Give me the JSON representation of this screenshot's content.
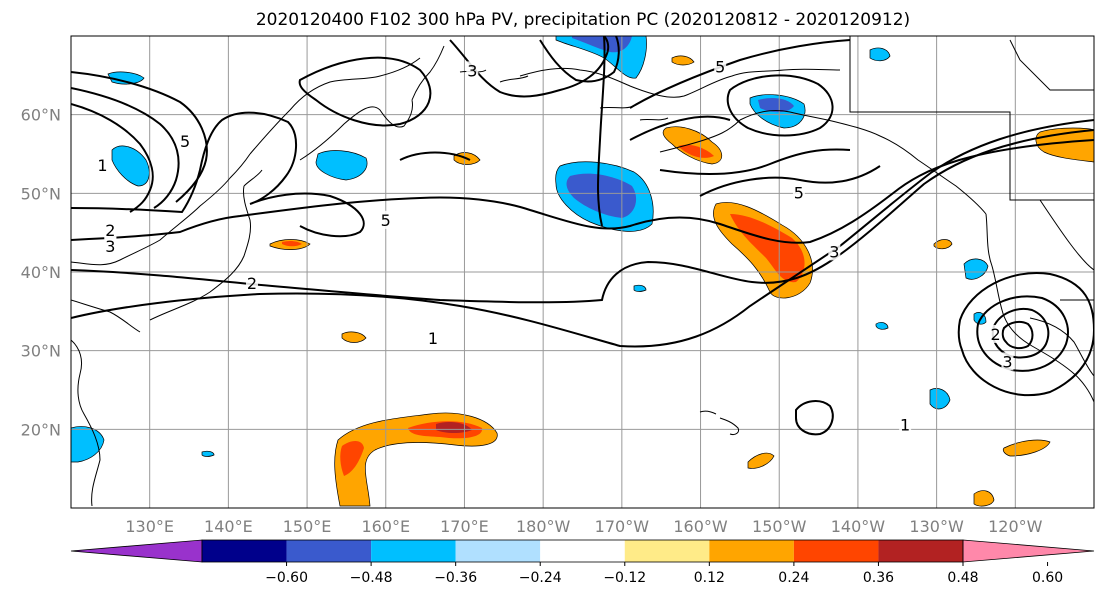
{
  "title": "2020120400 F102 300 hPa PV, precipitation PC (2020120812 - 2020120912)",
  "map": {
    "projection": "equirectangular",
    "lon_range": [
      120,
      250
    ],
    "lat_range": [
      10,
      70
    ],
    "lat_ticks": [
      {
        "value": 60,
        "label": "60°N"
      },
      {
        "value": 50,
        "label": "50°N"
      },
      {
        "value": 40,
        "label": "40°N"
      },
      {
        "value": 30,
        "label": "30°N"
      },
      {
        "value": 20,
        "label": "20°N"
      }
    ],
    "lon_ticks": [
      {
        "value": 130,
        "label": "130°E"
      },
      {
        "value": 140,
        "label": "140°E"
      },
      {
        "value": 150,
        "label": "150°E"
      },
      {
        "value": 160,
        "label": "160°E"
      },
      {
        "value": 170,
        "label": "170°E"
      },
      {
        "value": 180,
        "label": "180°W"
      },
      {
        "value": 190,
        "label": "170°W"
      },
      {
        "value": 200,
        "label": "160°W"
      },
      {
        "value": 210,
        "label": "150°W"
      },
      {
        "value": 220,
        "label": "140°W"
      },
      {
        "value": 230,
        "label": "130°W"
      },
      {
        "value": 240,
        "label": "120°W"
      }
    ],
    "contour_labels": [
      {
        "text": "1",
        "lon": 166,
        "lat": 31.5
      },
      {
        "text": "1",
        "lon": 124,
        "lat": 53.5
      },
      {
        "text": "1",
        "lon": 226,
        "lat": 20.5
      },
      {
        "text": "2",
        "lon": 143,
        "lat": 38.5
      },
      {
        "text": "2",
        "lon": 125,
        "lat": 45.2
      },
      {
        "text": "2",
        "lon": 237.5,
        "lat": 32
      },
      {
        "text": "3",
        "lon": 125,
        "lat": 43.2
      },
      {
        "text": "3",
        "lon": 239,
        "lat": 28.5
      },
      {
        "text": "3",
        "lon": 217,
        "lat": 42.5
      },
      {
        "text": "3",
        "lon": 171,
        "lat": 65.5
      },
      {
        "text": "5",
        "lon": 134.5,
        "lat": 56.5
      },
      {
        "text": "5",
        "lon": 160,
        "lat": 46.5
      },
      {
        "text": "5",
        "lon": 212.5,
        "lat": 50
      },
      {
        "text": "5",
        "lon": 202.5,
        "lat": 66
      }
    ]
  },
  "colorbar": {
    "colors": [
      "#9932CC",
      "#00008B",
      "#3A5ACD",
      "#00BFFF",
      "#B0E0FF",
      "#FFFFFF",
      "#FFEB88",
      "#FFA500",
      "#FF4500",
      "#B22222",
      "#FF88AA"
    ],
    "tick_values": [
      -0.6,
      -0.48,
      -0.36,
      -0.24,
      -0.12,
      0.12,
      0.24,
      0.36,
      0.48,
      0.6
    ],
    "tick_labels": [
      "−0.60",
      "−0.48",
      "−0.36",
      "−0.24",
      "−0.12",
      "0.12",
      "0.24",
      "0.36",
      "0.48",
      "0.60"
    ]
  }
}
